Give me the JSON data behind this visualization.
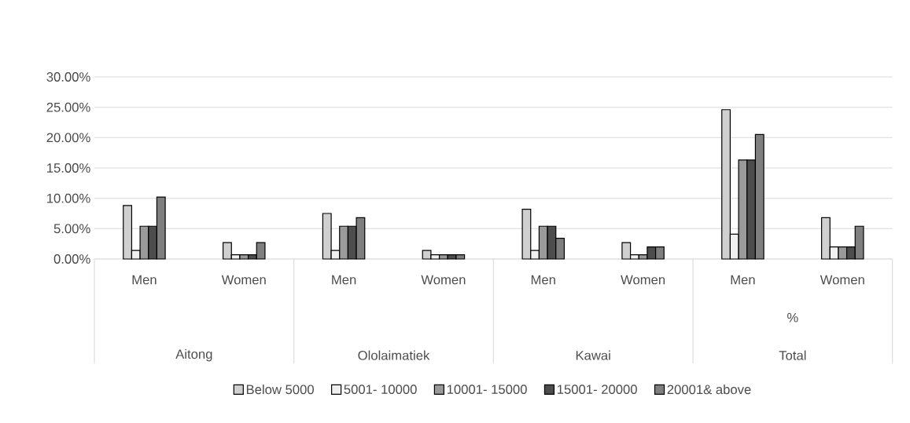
{
  "chart_data": {
    "type": "bar",
    "categories": [
      "Men",
      "Women",
      "Men",
      "Women",
      "Men",
      "Women",
      "Men",
      "Women"
    ],
    "series": [
      {
        "name": "Below 5000",
        "color": "#d0d0d0",
        "values": [
          8.8,
          2.7,
          7.5,
          1.4,
          8.2,
          2.7,
          24.6,
          6.8
        ]
      },
      {
        "name": "5001- 10000",
        "color": "#f0f0f0",
        "values": [
          1.4,
          0.7,
          1.4,
          0.7,
          1.4,
          0.7,
          4.1,
          2.0
        ]
      },
      {
        "name": "10001- 15000",
        "color": "#9a9a9a",
        "values": [
          5.4,
          0.7,
          5.4,
          0.7,
          5.4,
          0.7,
          16.3,
          2.0
        ]
      },
      {
        "name": "15001- 20000",
        "color": "#4d4d4d",
        "values": [
          5.4,
          0.7,
          5.4,
          0.7,
          5.4,
          2.0,
          16.3,
          2.0
        ]
      },
      {
        "name": "20001& above",
        "color": "#7f7f7f",
        "values": [
          10.2,
          2.7,
          6.8,
          0.7,
          3.4,
          2.0,
          20.5,
          5.4
        ]
      }
    ],
    "ylim": [
      0,
      30
    ],
    "yticks": [
      {
        "value": 0,
        "label": "0.00%"
      },
      {
        "value": 5,
        "label": "5.00%"
      },
      {
        "value": 10,
        "label": "10.00%"
      },
      {
        "value": 15,
        "label": "15.00%"
      },
      {
        "value": 20,
        "label": "20.00%"
      },
      {
        "value": 25,
        "label": "25.00%"
      },
      {
        "value": 30,
        "label": "30.00%"
      }
    ],
    "annotations": [
      "Aitong",
      "Ololaimatiek",
      "Kawai",
      "Total",
      "%"
    ],
    "grid": "y",
    "legend": "bottom"
  }
}
